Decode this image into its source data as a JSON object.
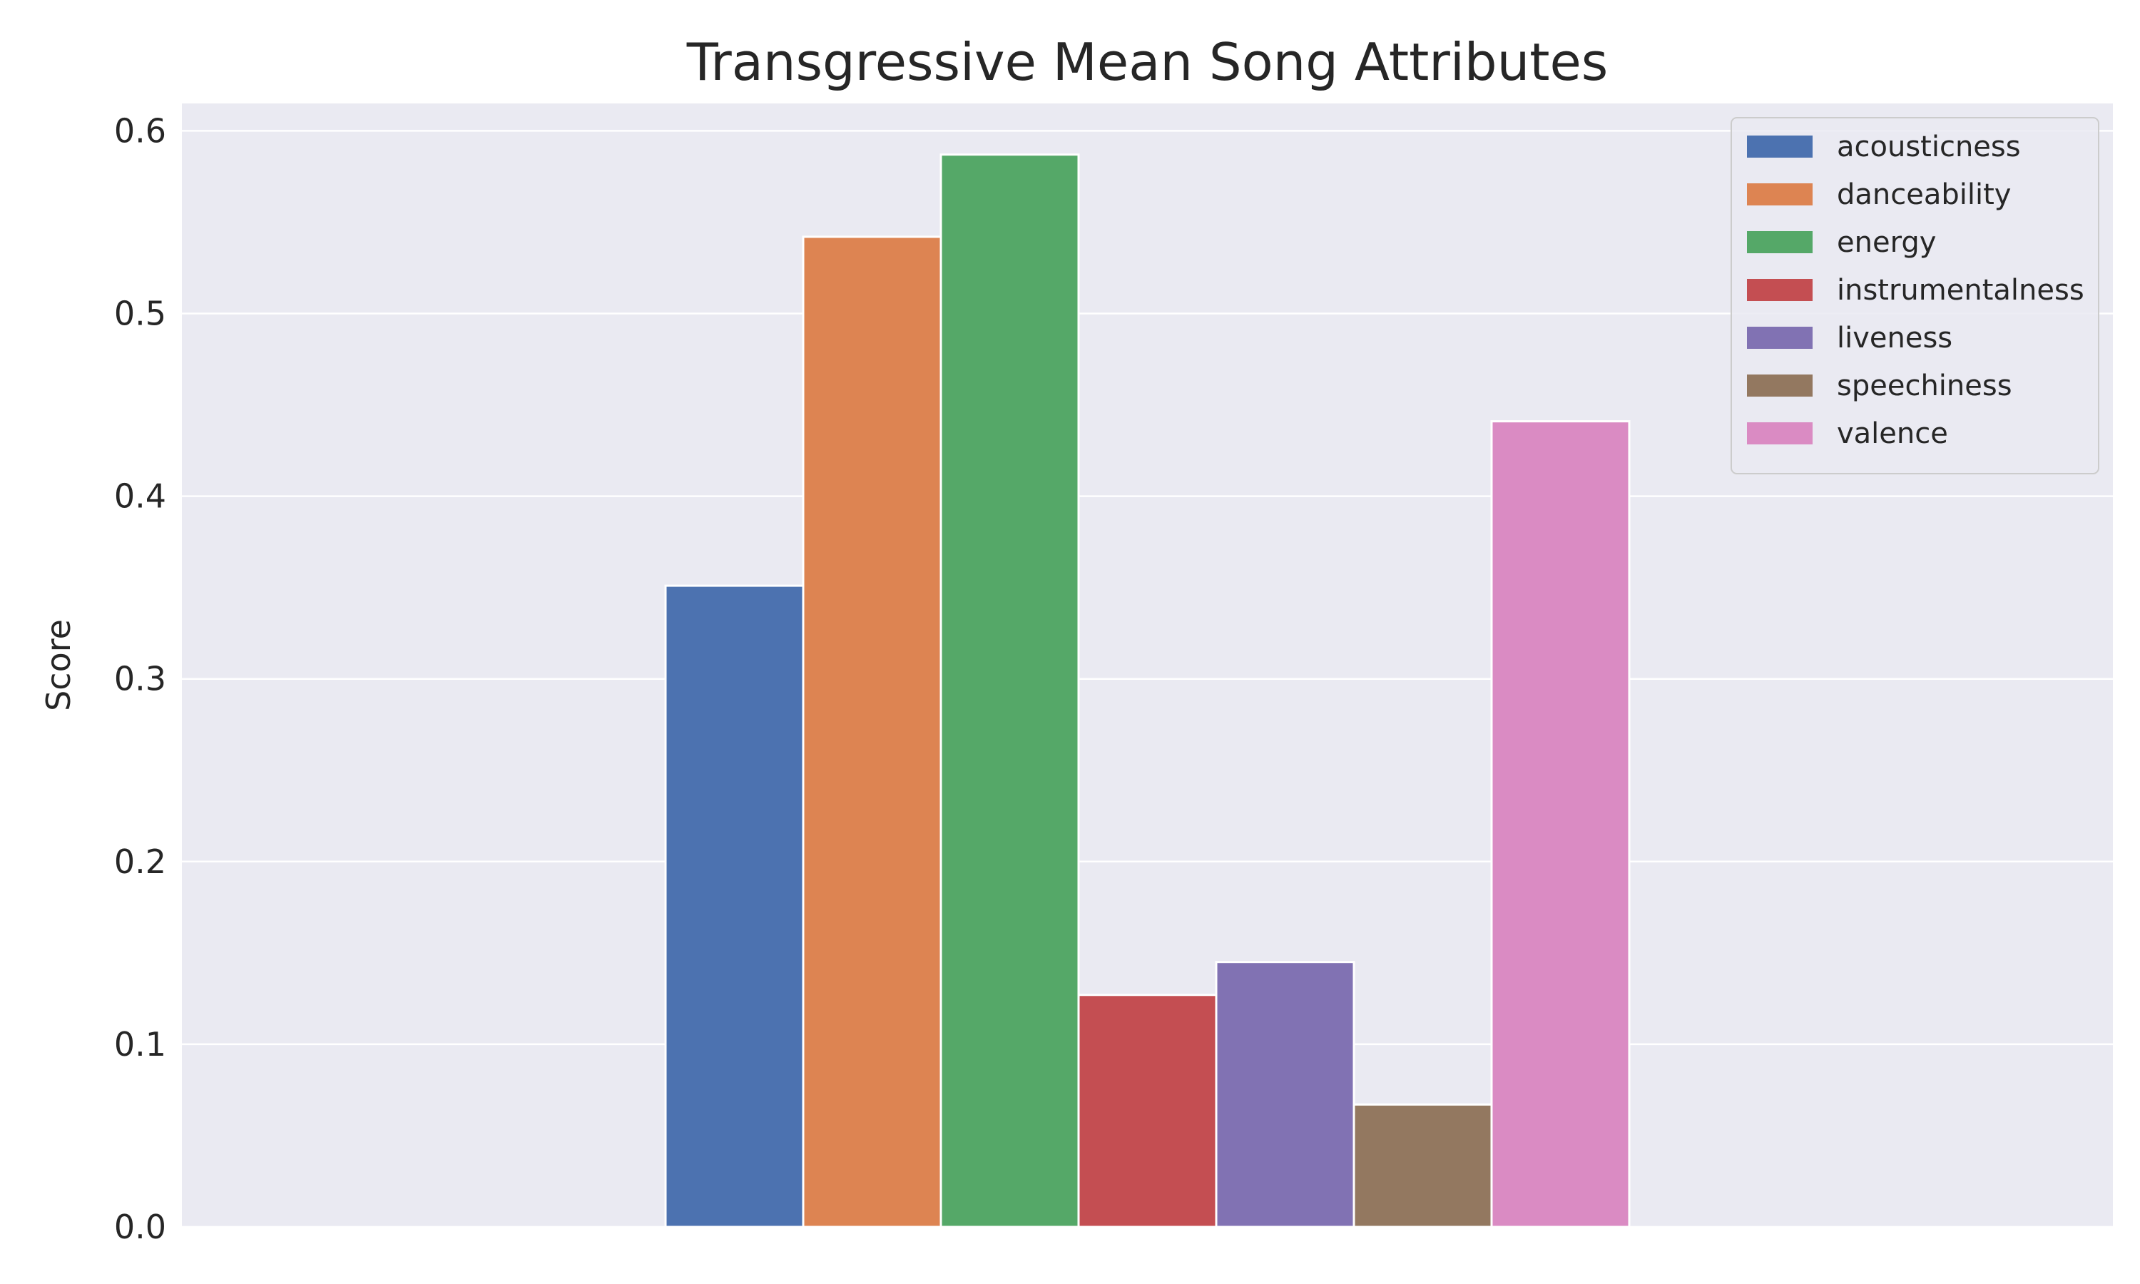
{
  "chart_data": {
    "type": "bar",
    "title": "Transgressive Mean Song Attributes",
    "xlabel": "",
    "ylabel": "Score",
    "ylim": [
      0,
      0.615
    ],
    "yticks": [
      0.0,
      0.1,
      0.2,
      0.3,
      0.4,
      0.5,
      0.6
    ],
    "ytick_labels": [
      "0.0",
      "0.1",
      "0.2",
      "0.3",
      "0.4",
      "0.5",
      "0.6"
    ],
    "grid": true,
    "legend": {
      "placement": "top-right"
    },
    "series": [
      {
        "name": "acousticness",
        "value": 0.351,
        "color": "#4c72b0"
      },
      {
        "name": "danceability",
        "value": 0.542,
        "color": "#dd8452"
      },
      {
        "name": "energy",
        "value": 0.587,
        "color": "#55a868"
      },
      {
        "name": "instrumentalness",
        "value": 0.127,
        "color": "#c44e52"
      },
      {
        "name": "liveness",
        "value": 0.145,
        "color": "#8172b3"
      },
      {
        "name": "speechiness",
        "value": 0.067,
        "color": "#937860"
      },
      {
        "name": "valence",
        "value": 0.441,
        "color": "#da8bc3"
      }
    ]
  }
}
